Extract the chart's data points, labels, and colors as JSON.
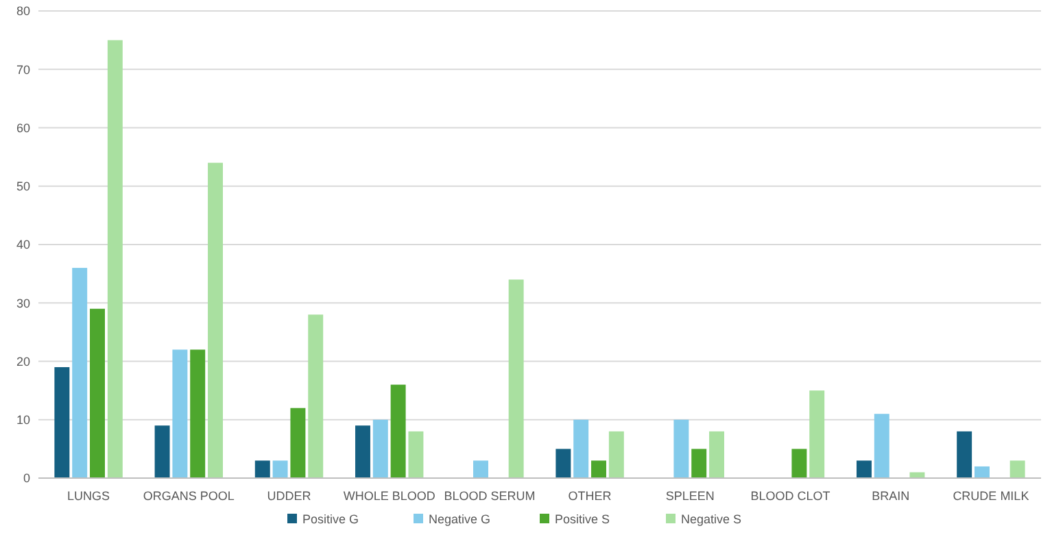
{
  "chart_data": {
    "type": "bar",
    "categories": [
      "LUNGS",
      "ORGANS POOL",
      "UDDER",
      "WHOLE BLOOD",
      "BLOOD SERUM",
      "OTHER",
      "SPLEEN",
      "BLOOD CLOT",
      "BRAIN",
      "CRUDE MILK"
    ],
    "series": [
      {
        "name": "Positive G",
        "color": "#156082",
        "values": [
          19,
          9,
          3,
          9,
          null,
          5,
          null,
          null,
          3,
          8
        ]
      },
      {
        "name": "Negative G",
        "color": "#83cbeb",
        "values": [
          36,
          22,
          3,
          10,
          3,
          10,
          10,
          null,
          11,
          2
        ]
      },
      {
        "name": "Positive S",
        "color": "#4ea72e",
        "values": [
          29,
          22,
          12,
          16,
          null,
          3,
          5,
          5,
          null,
          null
        ]
      },
      {
        "name": "Negative S",
        "color": "#a9e0a0",
        "values": [
          75,
          54,
          28,
          8,
          34,
          8,
          8,
          15,
          1,
          3
        ]
      }
    ],
    "ylim": [
      0,
      80
    ],
    "yticks": [
      0,
      10,
      20,
      30,
      40,
      50,
      60,
      70,
      80
    ],
    "grid": "y",
    "legend": "bottom"
  }
}
